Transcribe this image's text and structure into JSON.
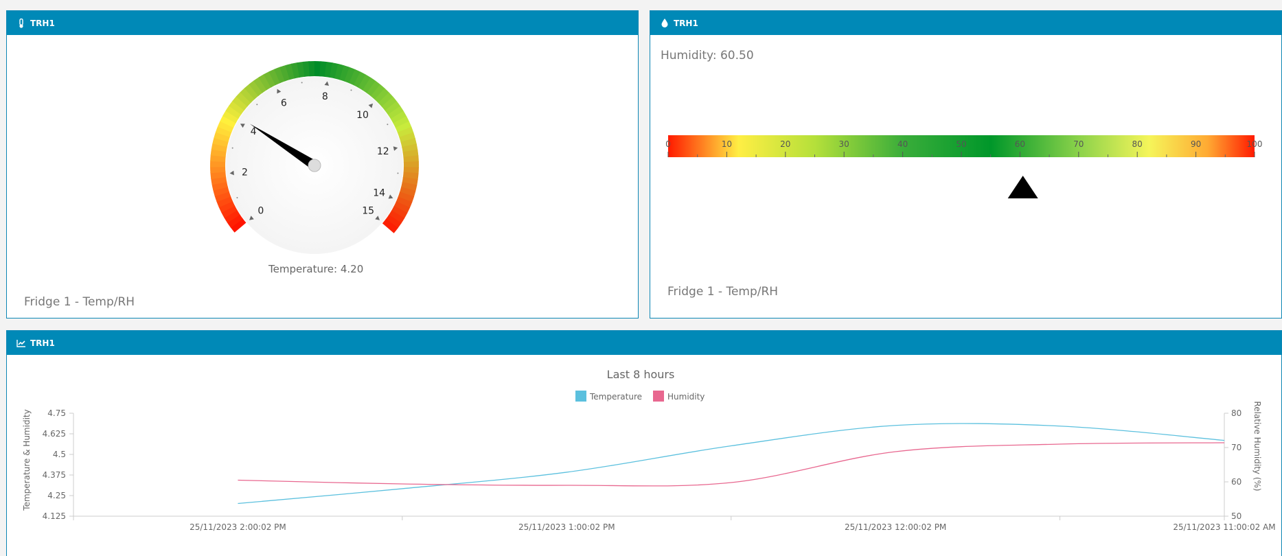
{
  "panels": {
    "gauge": {
      "title": "TRH1",
      "icon": "thermometer-icon",
      "readout": "Temperature: 4.20",
      "caption": "Fridge 1 - Temp/RH",
      "value": 4.2,
      "ticks": [
        "0",
        "2",
        "4",
        "6",
        "8",
        "10",
        "12",
        "14",
        "15"
      ]
    },
    "humidity": {
      "title": "TRH1",
      "icon": "droplet-icon",
      "readout": "Humidity: 60.50",
      "caption": "Fridge 1 - Temp/RH",
      "value": 60.5,
      "ticks": [
        "0",
        "10",
        "20",
        "30",
        "40",
        "50",
        "60",
        "70",
        "80",
        "90",
        "100"
      ]
    },
    "chart": {
      "title": "TRH1",
      "icon": "line-chart-icon"
    }
  },
  "colors": {
    "header": "#0089b7",
    "temperature": "#5bc0de",
    "humidity": "#e8678f"
  },
  "chart_data": {
    "type": "line",
    "title": "Last 8 hours",
    "legend": [
      "Temperature",
      "Humidity"
    ],
    "legend_position": "top-center",
    "x_ticks": [
      "25/11/2023 2:00:02 PM",
      "25/11/2023 1:00:02 PM",
      "25/11/2023 12:00:02 PM",
      "25/11/2023 11:00:02 AM"
    ],
    "ylabel_left": "Temperature & Humidity",
    "ylabel_right": "Relative Humidity (%)",
    "y_left_ticks": [
      "4.125",
      "4.25",
      "4.375",
      "4.5",
      "4.625",
      "4.75"
    ],
    "y_right_ticks": [
      "50",
      "60",
      "70",
      "80"
    ],
    "y_left_range": [
      4.125,
      4.75
    ],
    "y_right_range": [
      50,
      80
    ],
    "x_axis_order": "descending-time",
    "x_range_hours": [
      2.5,
      -1.0
    ],
    "series": [
      {
        "name": "Temperature",
        "axis": "left",
        "x_hours_from_noon": [
          2.0,
          1.5,
          1.0,
          0.5,
          0.0,
          -0.5,
          -1.0
        ],
        "values": [
          4.202,
          4.292,
          4.392,
          4.552,
          4.676,
          4.672,
          4.585
        ]
      },
      {
        "name": "Humidity",
        "axis": "right",
        "x_hours_from_noon": [
          2.0,
          1.5,
          1.0,
          0.5,
          0.0,
          -0.5,
          -1.0
        ],
        "values": [
          60.5,
          59.4,
          59.0,
          59.8,
          68.8,
          71.0,
          71.4
        ]
      }
    ]
  }
}
